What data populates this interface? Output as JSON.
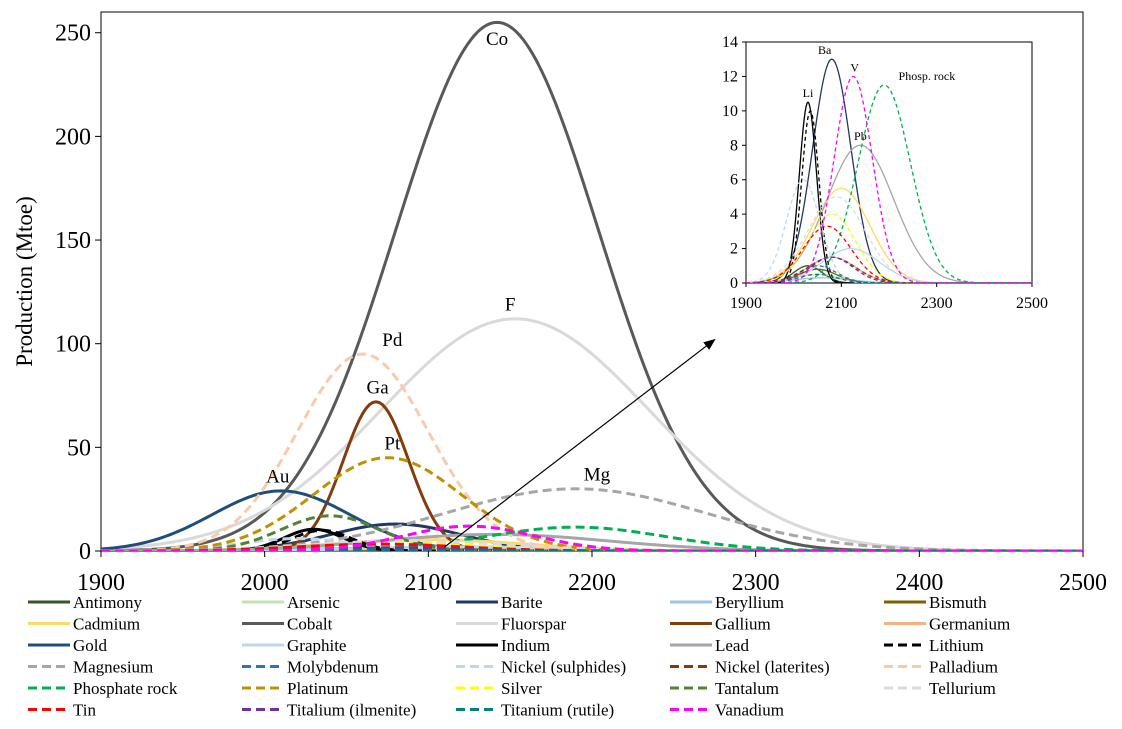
{
  "chart_data": [
    {
      "type": "line",
      "title": "",
      "xlabel": "",
      "ylabel": "Production (Mtoe)",
      "xlim": [
        1900,
        2500
      ],
      "ylim": [
        0,
        260
      ],
      "x_ticks": [
        1900,
        2000,
        2100,
        2200,
        2300,
        2400,
        2500
      ],
      "y_ticks": [
        0,
        50,
        100,
        150,
        200,
        250
      ],
      "legend_position": "bottom",
      "legend_columns": 5,
      "series": [
        {
          "name": "Antimony",
          "color": "#375623",
          "dash": "solid",
          "peak_year": 2030,
          "peak_value": 1.0,
          "sigma": 30
        },
        {
          "name": "Arsenic",
          "color": "#C5E0B4",
          "dash": "solid",
          "peak_year": 2050,
          "peak_value": 0.5,
          "sigma": 50
        },
        {
          "name": "Barite",
          "color": "#1F3864",
          "dash": "solid",
          "peak_year": 2080,
          "peak_value": 13,
          "sigma": 40
        },
        {
          "name": "Beryllium",
          "color": "#9DC3E6",
          "dash": "solid",
          "peak_year": 2060,
          "peak_value": 0.3,
          "sigma": 60
        },
        {
          "name": "Bismuth",
          "color": "#806000",
          "dash": "solid",
          "peak_year": 2050,
          "peak_value": 0.8,
          "sigma": 40
        },
        {
          "name": "Cadmium",
          "color": "#FFD966",
          "dash": "solid",
          "peak_year": 2100,
          "peak_value": 5.5,
          "sigma": 60
        },
        {
          "name": "Cobalt",
          "color": "#595959",
          "dash": "solid",
          "peak_year": 2142,
          "peak_value": 255,
          "sigma": 62
        },
        {
          "name": "Fluorspar",
          "color": "#D9D9D9",
          "dash": "solid",
          "peak_year": 2153,
          "peak_value": 112,
          "sigma": 82
        },
        {
          "name": "Gallium",
          "color": "#843C0C",
          "dash": "solid",
          "peak_year": 2068,
          "peak_value": 72,
          "sigma": 20
        },
        {
          "name": "Germanium",
          "color": "#F4B183",
          "dash": "solid",
          "peak_year": 2080,
          "peak_value": 1.5,
          "sigma": 50
        },
        {
          "name": "Gold",
          "color": "#1F4E79",
          "dash": "solid",
          "peak_year": 2010,
          "peak_value": 29,
          "sigma": 42
        },
        {
          "name": "Graphite",
          "color": "#BDD7EE",
          "dash": "solid",
          "peak_year": 2120,
          "peak_value": 2,
          "sigma": 60
        },
        {
          "name": "Indium",
          "color": "#000000",
          "dash": "solid",
          "peak_year": 2030,
          "peak_value": 10.5,
          "sigma": 18
        },
        {
          "name": "Lead",
          "color": "#A6A6A6",
          "dash": "solid",
          "peak_year": 2140,
          "peak_value": 8,
          "sigma": 70
        },
        {
          "name": "Lithium",
          "color": "#000000",
          "dash": "dashed",
          "peak_year": 2035,
          "peak_value": 10,
          "sigma": 18
        },
        {
          "name": "Magnesium",
          "color": "#A6A6A6",
          "dash": "dashed",
          "peak_year": 2190,
          "peak_value": 30,
          "sigma": 80
        },
        {
          "name": "Molybdenum",
          "color": "#2E75B6",
          "dash": "dashed",
          "peak_year": 2050,
          "peak_value": 1.0,
          "sigma": 40
        },
        {
          "name": "Nickel (sulphides)",
          "color": "#BDD7EE",
          "dash": "dashed",
          "peak_year": 2020,
          "peak_value": 6,
          "sigma": 35
        },
        {
          "name": "Nickel (laterites)",
          "color": "#843C0C",
          "dash": "dashed",
          "peak_year": 2080,
          "peak_value": 1.5,
          "sigma": 50
        },
        {
          "name": "Palladium",
          "color": "#F8CBAD",
          "dash": "dashed",
          "peak_year": 2060,
          "peak_value": 95,
          "sigma": 40
        },
        {
          "name": "Phosphate rock",
          "color": "#00B050",
          "dash": "dashed",
          "peak_year": 2190,
          "peak_value": 11.5,
          "sigma": 55
        },
        {
          "name": "Platinum",
          "color": "#BF9000",
          "dash": "dashed",
          "peak_year": 2075,
          "peak_value": 45,
          "sigma": 45
        },
        {
          "name": "Silver",
          "color": "#FFFF00",
          "dash": "dashed",
          "peak_year": 2080,
          "peak_value": 4,
          "sigma": 50
        },
        {
          "name": "Tantalum",
          "color": "#548235",
          "dash": "dashed",
          "peak_year": 2040,
          "peak_value": 17,
          "sigma": 30
        },
        {
          "name": "Tellurium",
          "color": "#D6DCE4",
          "dash": "dashed",
          "peak_year": 2090,
          "peak_value": 5,
          "sigma": 60
        },
        {
          "name": "Tin",
          "color": "#FF0000",
          "dash": "dashed",
          "peak_year": 2070,
          "peak_value": 3.3,
          "sigma": 50
        },
        {
          "name": "Titalium (ilmenite)",
          "color": "#7030A0",
          "dash": "dashed",
          "peak_year": 2080,
          "peak_value": 1.5,
          "sigma": 45
        },
        {
          "name": "Titanium (rutile)",
          "color": "#00807F",
          "dash": "dashed",
          "peak_year": 2050,
          "peak_value": 0.5,
          "sigma": 40
        },
        {
          "name": "Vanadium",
          "color": "#FF00FF",
          "dash": "dashed",
          "peak_year": 2125,
          "peak_value": 12,
          "sigma": 40
        }
      ],
      "annotations": [
        {
          "text": "Co",
          "x": 2142,
          "y": 244
        },
        {
          "text": "F",
          "x": 2150,
          "y": 116
        },
        {
          "text": "Pd",
          "x": 2078,
          "y": 99
        },
        {
          "text": "Ga",
          "x": 2069,
          "y": 76
        },
        {
          "text": "Pt",
          "x": 2078,
          "y": 49
        },
        {
          "text": "Au",
          "x": 2008,
          "y": 33
        },
        {
          "text": "Mg",
          "x": 2203,
          "y": 34
        }
      ],
      "arrow": {
        "from": [
          2110,
          2
        ],
        "to": [
          2275,
          102
        ]
      }
    },
    {
      "type": "line",
      "title": "",
      "xlabel": "",
      "ylabel": "",
      "xlim": [
        1900,
        2500
      ],
      "ylim": [
        0,
        14
      ],
      "x_ticks": [
        1900,
        2100,
        2300,
        2500
      ],
      "y_ticks": [
        0,
        2,
        4,
        6,
        8,
        10,
        12,
        14
      ],
      "annotations": [
        {
          "text": "Ba",
          "x": 2065,
          "y": 13.3
        },
        {
          "text": "V",
          "x": 2128,
          "y": 12.3
        },
        {
          "text": "Phosp. rock",
          "x": 2220,
          "y": 11.8
        },
        {
          "text": "Li",
          "x": 2030,
          "y": 10.8
        },
        {
          "text": "Pb",
          "x": 2140,
          "y": 8.3
        }
      ]
    }
  ]
}
